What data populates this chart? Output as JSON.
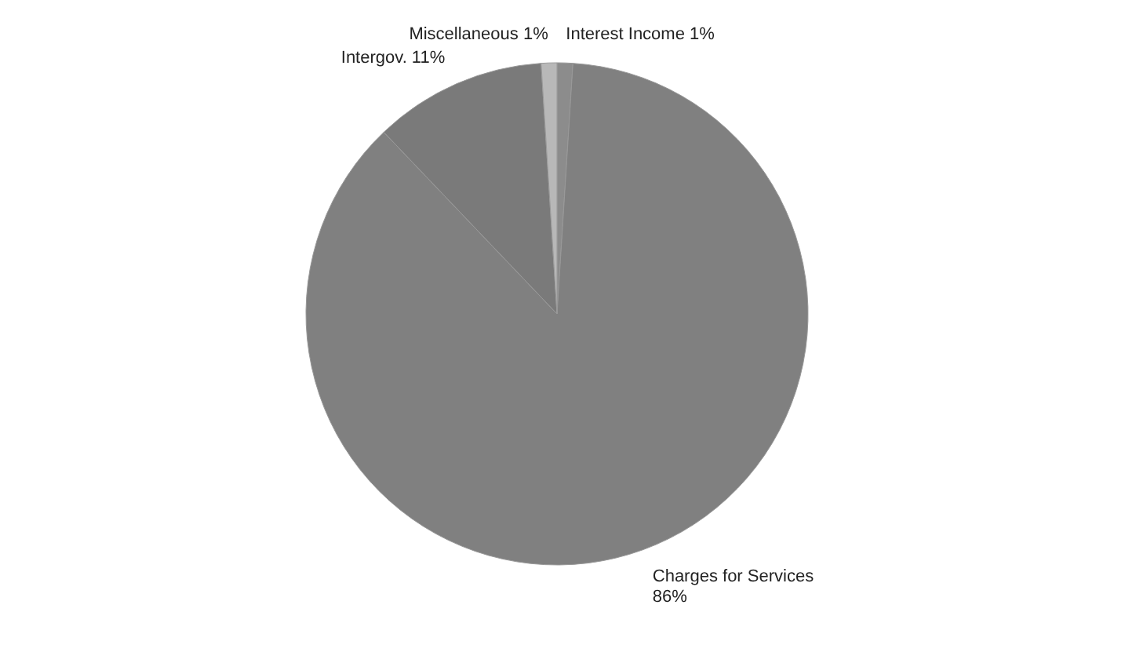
{
  "chart_data": {
    "type": "pie",
    "categories": [
      "Interest Income",
      "Charges for Services",
      "Intergov.",
      "Miscellaneous"
    ],
    "values": [
      1,
      86,
      11,
      1
    ],
    "value_labels": [
      "1%",
      "86%",
      "11%",
      "1%"
    ],
    "colors": [
      "#8c8c8c",
      "#808080",
      "#7a7a7a",
      "#b8b8b8"
    ],
    "legend": false
  }
}
